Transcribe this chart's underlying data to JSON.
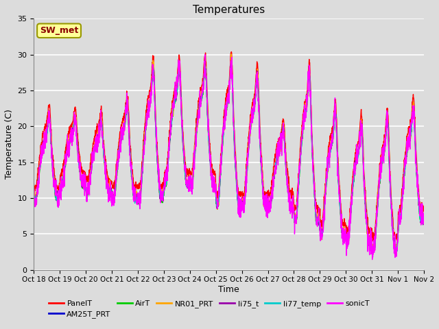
{
  "title": "Temperatures",
  "xlabel": "Time",
  "ylabel": "Temperature (C)",
  "ylim": [
    0,
    35
  ],
  "annotation": "SW_met",
  "annotation_color": "#8B0000",
  "annotation_bg": "#FFFF99",
  "annotation_edge": "#999900",
  "x_tick_labels": [
    "Oct 18",
    "Oct 19",
    "Oct 20",
    "Oct 21",
    "Oct 22",
    "Oct 23",
    "Oct 24",
    "Oct 25",
    "Oct 26",
    "Oct 27",
    "Oct 28",
    "Oct 29",
    "Oct 30",
    "Oct 31",
    "Nov 1",
    "Nov 2"
  ],
  "series_names": [
    "PanelT",
    "AM25T_PRT",
    "AirT",
    "NR01_PRT",
    "li75_t",
    "li77_temp",
    "sonicT"
  ],
  "series_colors": [
    "#FF0000",
    "#0000CD",
    "#00CC00",
    "#FFA500",
    "#9900AA",
    "#00CCCC",
    "#FF00FF"
  ],
  "background_color": "#DCDCDC",
  "grid_color": "#FFFFFF",
  "n_days": 15,
  "samples_per_day": 144,
  "day_peak_maxes": [
    24,
    23,
    23,
    26,
    32,
    32,
    32,
    33,
    31,
    22,
    32,
    26,
    24,
    25,
    26
  ],
  "day_min_vals": [
    10,
    12,
    11,
    10,
    10,
    12,
    12,
    9,
    9,
    9,
    7,
    5,
    4,
    3,
    7
  ],
  "figsize": [
    6.4,
    4.8
  ],
  "dpi": 100
}
